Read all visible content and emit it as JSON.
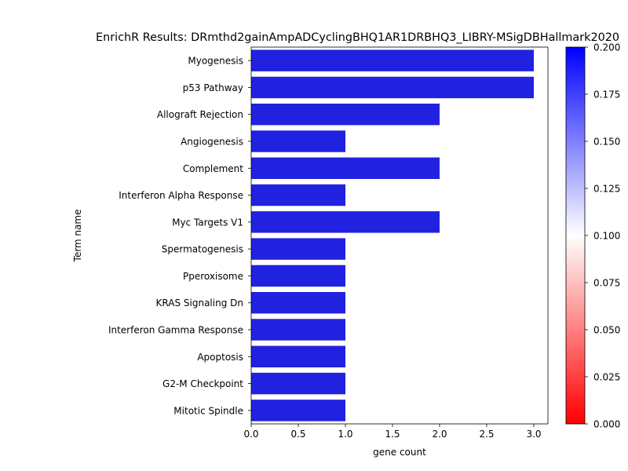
{
  "chart_data": {
    "type": "bar",
    "orientation": "horizontal",
    "title": "EnrichR Results: DRmthd2gainAmpADCyclingBHQ1AR1DRBHQ3_LIBRY-MSigDBHallmark2020",
    "xlabel": "gene count",
    "ylabel": "Term name",
    "xlim": [
      0,
      3.15
    ],
    "xticks": [
      "0.0",
      "0.5",
      "1.0",
      "1.5",
      "2.0",
      "2.5",
      "3.0"
    ],
    "categories": [
      "Myogenesis",
      "p53 Pathway",
      "Allograft Rejection",
      "Angiogenesis",
      "Complement",
      "Interferon Alpha Response",
      "Myc Targets V1",
      "Spermatogenesis",
      "Pperoxisome",
      "KRAS Signaling Dn",
      "Interferon Gamma Response",
      "Apoptosis",
      "G2-M Checkpoint",
      "Mitotic Spindle"
    ],
    "values": [
      3,
      3,
      2,
      1,
      2,
      1,
      2,
      1,
      1,
      1,
      1,
      1,
      1,
      1
    ],
    "bar_color": "#2121e0",
    "grid": false,
    "colorbar": {
      "range": [
        0.0,
        0.2
      ],
      "ticks": [
        "0.000",
        "0.025",
        "0.050",
        "0.075",
        "0.100",
        "0.125",
        "0.150",
        "0.175",
        "0.200"
      ],
      "colors": [
        "#ff0000",
        "#ffffff",
        "#0000ff"
      ]
    }
  }
}
